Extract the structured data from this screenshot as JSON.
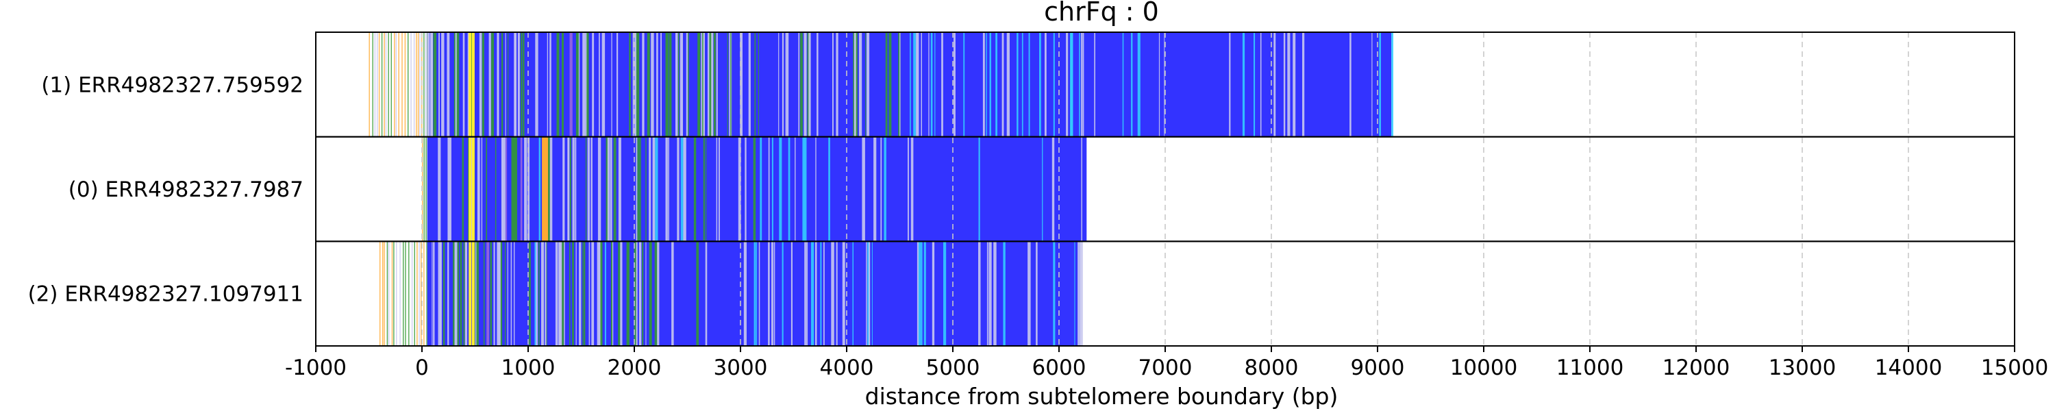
{
  "chart_data": {
    "type": "track",
    "title": "chrFq : 0",
    "xlabel": "distance from subtelomere boundary (bp)",
    "ylabel": "",
    "xlim": [
      -1000,
      15000
    ],
    "xticks": [
      -1000,
      0,
      1000,
      2000,
      3000,
      4000,
      5000,
      6000,
      7000,
      8000,
      9000,
      10000,
      11000,
      12000,
      13000,
      14000,
      15000
    ],
    "grid": "vertical dashed",
    "colors": {
      "repeat": "#3333ff",
      "variant_light": "#c8c8ee",
      "variant_green": "#339933",
      "variant_cyan": "#33ccff",
      "variant_yellow": "#ffee33",
      "variant_orange": "#ffaa33",
      "variant_purple": "#9966dd",
      "grid": "#c8c8c8",
      "frame": "#000000"
    },
    "tracks": [
      {
        "label": "(1) ERR4982327.759592",
        "start": -500,
        "subtelomere_end": 50,
        "end": 9130,
        "seed": 17
      },
      {
        "label": "(0) ERR4982327.7987",
        "start": 0,
        "subtelomere_end": 50,
        "end": 6260,
        "seed": 42
      },
      {
        "label": "(2) ERR4982327.1097911",
        "start": -400,
        "subtelomere_end": 50,
        "end": 6200,
        "seed": 91
      }
    ]
  }
}
